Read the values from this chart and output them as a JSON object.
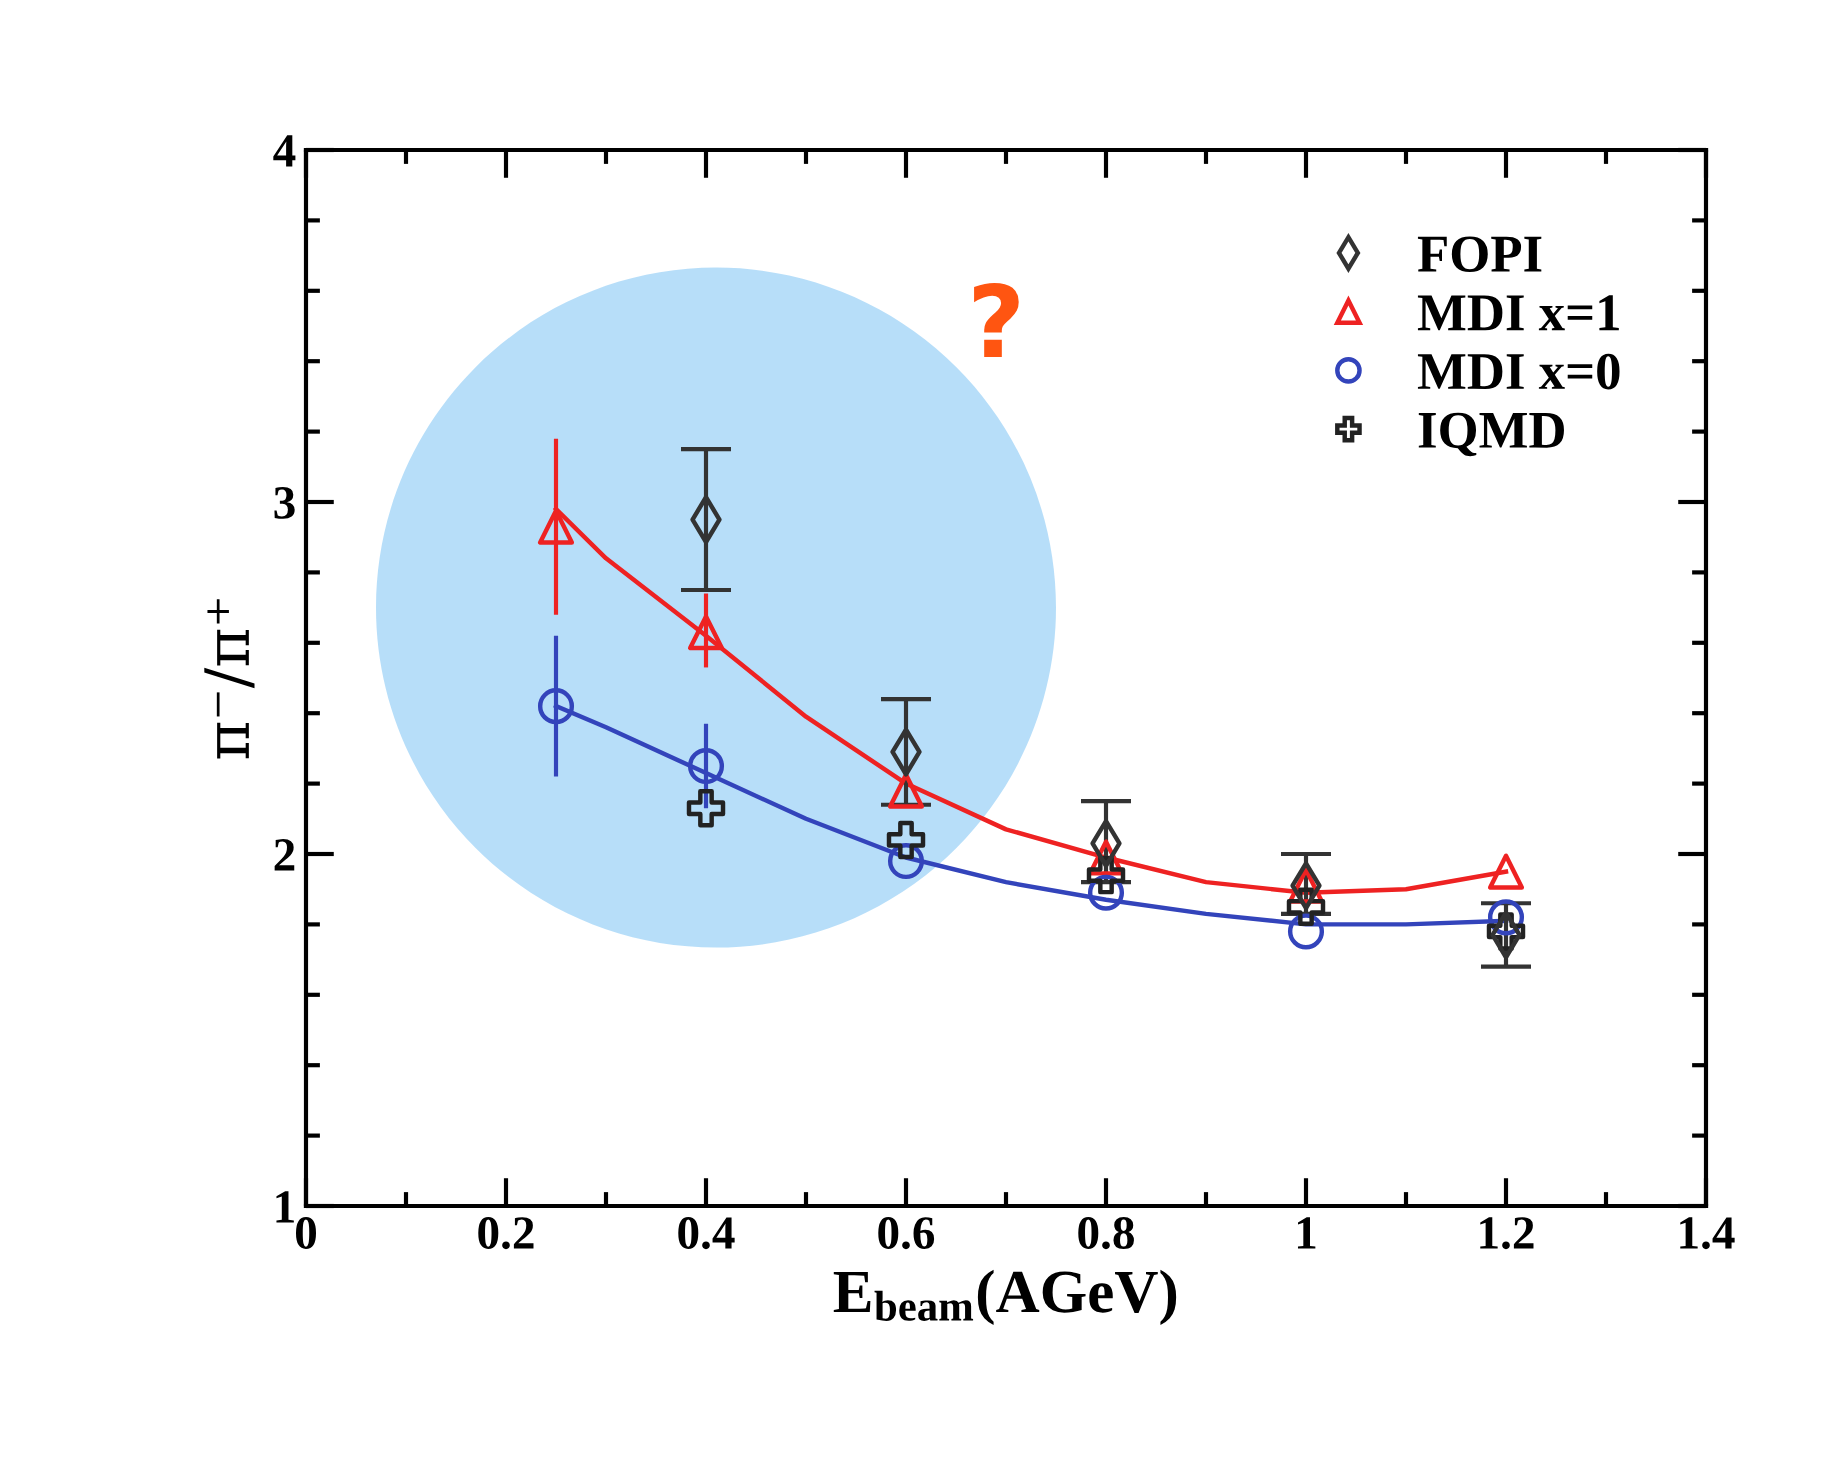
{
  "chart_data": {
    "type": "scatter",
    "xlabel": "E$_{beam}$(AGeV)",
    "ylabel": "π⁻/π⁺",
    "xlim": [
      0,
      1.4
    ],
    "xticks": [
      0,
      0.2,
      0.4,
      0.6,
      0.8,
      1,
      1.2,
      1.4
    ],
    "ylim": [
      1,
      4
    ],
    "yticks": [
      1,
      2,
      3,
      4
    ],
    "legend": "top right",
    "grid": false,
    "annotations": [
      "?"
    ],
    "series": [
      {
        "name": "FOPI",
        "marker": "diamond",
        "color": "#333333",
        "x": [
          0.4,
          0.6,
          0.8,
          1.0,
          1.2
        ],
        "values": [
          2.95,
          2.29,
          2.03,
          1.91,
          1.77
        ],
        "errors": [
          [
            2.75,
            3.15
          ],
          [
            2.14,
            2.44
          ],
          [
            1.92,
            2.15
          ],
          [
            1.83,
            2.0
          ],
          [
            1.68,
            1.86
          ]
        ]
      },
      {
        "name": "MDI x=1",
        "marker": "triangle",
        "color": "#ee2222",
        "x": [
          0.25,
          0.4,
          0.6,
          0.8,
          1.0,
          1.2
        ],
        "values": [
          2.93,
          2.63,
          2.18,
          1.99,
          1.91,
          1.95
        ],
        "errors": [
          [
            2.68,
            3.18
          ],
          [
            2.53,
            2.74
          ],
          null,
          null,
          null,
          null
        ]
      },
      {
        "name": "MDI x=0",
        "marker": "circle",
        "color": "#3344bb",
        "x": [
          0.25,
          0.4,
          0.6,
          0.8,
          1.0,
          1.2
        ],
        "values": [
          2.42,
          2.25,
          1.98,
          1.89,
          1.78,
          1.82
        ],
        "errors": [
          [
            2.22,
            2.62
          ],
          [
            2.13,
            2.37
          ],
          null,
          null,
          null,
          null
        ]
      },
      {
        "name": "IQMD",
        "marker": "cross",
        "color": "#222222",
        "x": [
          0.4,
          0.6,
          0.8,
          1.0,
          1.2
        ],
        "values": [
          2.13,
          2.04,
          1.94,
          1.85,
          1.78
        ]
      },
      {
        "type": "line",
        "color": "#ee2222",
        "x": [
          0.25,
          0.3,
          0.4,
          0.5,
          0.6,
          0.7,
          0.8,
          0.9,
          1.0,
          1.1,
          1.2
        ],
        "values": [
          2.98,
          2.84,
          2.62,
          2.39,
          2.2,
          2.07,
          1.99,
          1.92,
          1.89,
          1.9,
          1.95
        ]
      },
      {
        "type": "line",
        "color": "#3344bb",
        "x": [
          0.25,
          0.3,
          0.4,
          0.5,
          0.6,
          0.7,
          0.8,
          0.9,
          1.0,
          1.1,
          1.2
        ],
        "values": [
          2.42,
          2.36,
          2.23,
          2.1,
          1.99,
          1.92,
          1.87,
          1.83,
          1.8,
          1.8,
          1.81
        ]
      }
    ]
  }
}
